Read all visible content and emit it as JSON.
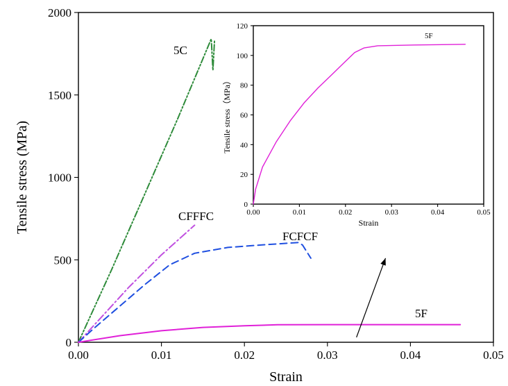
{
  "chart_data": [
    {
      "type": "line",
      "xlabel": "Strain",
      "ylabel": "Tensile stress (MPa)",
      "xlim": [
        0,
        0.05
      ],
      "ylim": [
        0,
        2000
      ],
      "x_ticks": [
        0,
        0.01,
        0.02,
        0.03,
        0.04,
        0.05
      ],
      "x_tick_labels": [
        "0.00",
        "0.01",
        "0.02",
        "0.03",
        "0.04",
        "0.05"
      ],
      "y_ticks": [
        0,
        500,
        1000,
        1500,
        2000
      ],
      "y_tick_labels": [
        "0",
        "500",
        "1000",
        "1500",
        "2000"
      ],
      "series": [
        {
          "name": "5C",
          "color": "#2e8b3a",
          "dash": "dash-dot-dot",
          "points": [
            [
              0,
              0
            ],
            [
              0.004,
              440
            ],
            [
              0.008,
              900
            ],
            [
              0.012,
              1360
            ],
            [
              0.0155,
              1780
            ],
            [
              0.016,
              1840
            ],
            [
              0.0162,
              1650
            ],
            [
              0.0164,
              1830
            ]
          ]
        },
        {
          "name": "CFFFC",
          "color": "#c050e0",
          "dash": "dash-dot",
          "points": [
            [
              0,
              0
            ],
            [
              0.002,
              110
            ],
            [
              0.006,
              330
            ],
            [
              0.01,
              530
            ],
            [
              0.014,
              710
            ]
          ]
        },
        {
          "name": "FCFCF",
          "color": "#1f4fe0",
          "dash": "dashed",
          "points": [
            [
              0,
              0
            ],
            [
              0.002,
              90
            ],
            [
              0.005,
              220
            ],
            [
              0.008,
              350
            ],
            [
              0.011,
              470
            ],
            [
              0.014,
              540
            ],
            [
              0.018,
              575
            ],
            [
              0.022,
              590
            ],
            [
              0.025,
              600
            ],
            [
              0.0265,
              605
            ],
            [
              0.027,
              590
            ],
            [
              0.0275,
              550
            ],
            [
              0.028,
              510
            ]
          ]
        },
        {
          "name": "5F",
          "color": "#e020d8",
          "dash": "solid",
          "points": [
            [
              0,
              0
            ],
            [
              0.005,
              40
            ],
            [
              0.01,
              70
            ],
            [
              0.015,
              90
            ],
            [
              0.02,
              100
            ],
            [
              0.024,
              106
            ],
            [
              0.03,
              107
            ],
            [
              0.04,
              107
            ],
            [
              0.046,
              107
            ]
          ]
        }
      ],
      "annotation": {
        "type": "arrow",
        "from": [
          0.0335,
          30
        ],
        "to": [
          0.037,
          510
        ]
      }
    },
    {
      "type": "line",
      "xlabel": "Strain",
      "ylabel": "Tensile stress（MPa）",
      "xlim": [
        0,
        0.05
      ],
      "ylim": [
        0,
        120
      ],
      "x_ticks": [
        0,
        0.01,
        0.02,
        0.03,
        0.04,
        0.05
      ],
      "x_tick_labels": [
        "0.00",
        "0.01",
        "0.02",
        "0.03",
        "0.04",
        "0.05"
      ],
      "y_ticks": [
        0,
        20,
        40,
        60,
        80,
        100,
        120
      ],
      "y_tick_labels": [
        "0",
        "20",
        "40",
        "60",
        "80",
        "100",
        "120"
      ],
      "series": [
        {
          "name": "5F",
          "color": "#e020d8",
          "dash": "solid",
          "points": [
            [
              0,
              0
            ],
            [
              0.0005,
              10
            ],
            [
              0.002,
              25
            ],
            [
              0.005,
              42
            ],
            [
              0.008,
              56
            ],
            [
              0.011,
              68
            ],
            [
              0.014,
              78
            ],
            [
              0.017,
              87
            ],
            [
              0.02,
              96
            ],
            [
              0.022,
              102
            ],
            [
              0.024,
              105
            ],
            [
              0.027,
              106.5
            ],
            [
              0.035,
              107
            ],
            [
              0.046,
              107.5
            ]
          ]
        }
      ]
    }
  ]
}
